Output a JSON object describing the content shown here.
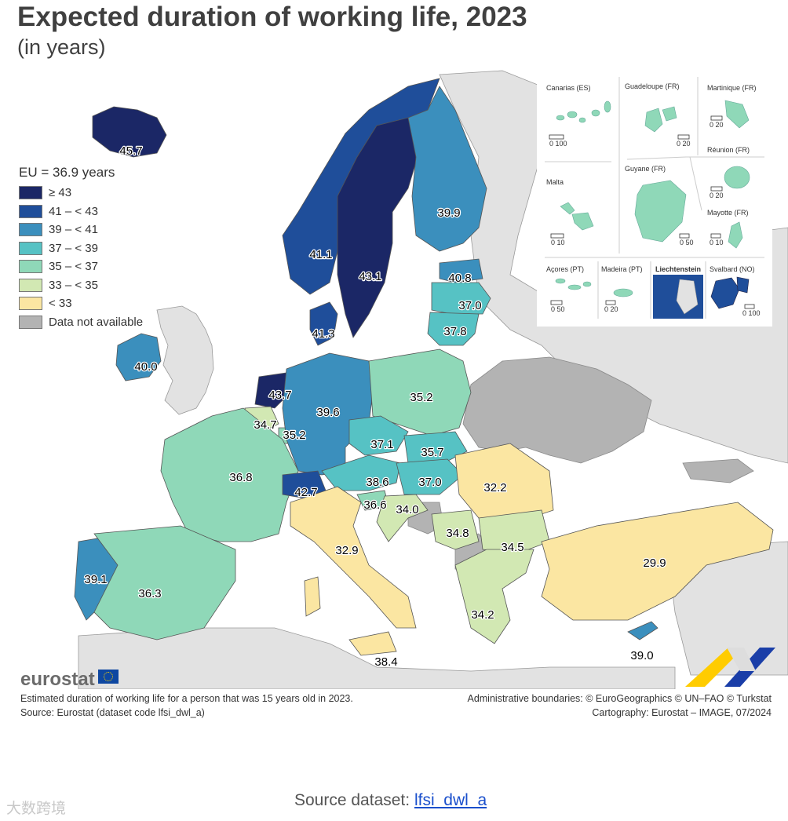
{
  "title": "Expected duration of working life, 2023",
  "subtitle": "(in years)",
  "legend": {
    "title": "EU = 36.9 years",
    "items": [
      {
        "label": "≥ 43",
        "color": "#1b2766"
      },
      {
        "label": "41 – < 43",
        "color": "#1f4e9a"
      },
      {
        "label": "39 – < 41",
        "color": "#3b8fbd"
      },
      {
        "label": "37 – < 39",
        "color": "#56c2c4"
      },
      {
        "label": "35 – < 37",
        "color": "#8fd8b8"
      },
      {
        "label": "33 – < 35",
        "color": "#d2e8b3"
      },
      {
        "label": "< 33",
        "color": "#fbe6a2"
      },
      {
        "label": "Data not available",
        "color": "#b3b3b3"
      }
    ]
  },
  "map_values": {
    "iceland": "45.7",
    "norway": "41.1",
    "sweden": "43.1",
    "finland": "39.9",
    "estonia": "40.8",
    "latvia": "37.0",
    "lithuania": "37.8",
    "denmark": "41.3",
    "ireland": "40.0",
    "netherlands": "43.7",
    "belgium": "34.7",
    "luxembourg": "35.2",
    "germany": "39.6",
    "poland": "35.2",
    "czechia": "37.1",
    "slovakia": "35.7",
    "france": "36.8",
    "switzerland": "42.7",
    "austria": "38.6",
    "hungary": "37.0",
    "slovenia": "36.6",
    "croatia": "34.0",
    "romania": "32.2",
    "serbia": "34.8",
    "bulgaria": "34.5",
    "italy": "32.9",
    "portugal": "39.1",
    "spain": "36.3",
    "greece": "34.2",
    "turkey": "29.9",
    "cyprus": "39.0",
    "malta": "38.4"
  },
  "inset": {
    "canarias": "Canarias (ES)",
    "guadeloupe": "Guadeloupe (FR)",
    "martinique": "Martinique (FR)",
    "reunion": "Réunion (FR)",
    "malta": "Malta",
    "guyane": "Guyane (FR)",
    "mayotte": "Mayotte (FR)",
    "acores": "Açores (PT)",
    "madeira": "Madeira (PT)",
    "liechtenstein": "Liechtenstein",
    "svalbard": "Svalbard (NO)",
    "scales": {
      "canarias": "0   100",
      "guadeloupe": "0   20",
      "martinique": "0   20",
      "reunion": "0   20",
      "malta": "0   10",
      "guyane": "0  50",
      "mayotte": "0  10",
      "acores": "0   50",
      "madeira": "0  20",
      "svalbard": "0  100"
    }
  },
  "logo": "eurostat",
  "footer": {
    "note": "Estimated duration of working life for a person that was 15 years old in 2023.",
    "source": "Source: Eurostat (dataset code lfsi_dwl_a)",
    "admin": "Administrative boundaries: © EuroGeographics © UN–FAO © Turkstat",
    "cartography": "Cartography: Eurostat – IMAGE, 07/2024"
  },
  "source_line": {
    "prefix": "Source dataset:",
    "link": "lfsi_dwl_a"
  },
  "watermark": "大数跨境",
  "colors": {
    "sea": "#ffffff",
    "non_eu_land": "#e2e2e2",
    "no_data": "#b3b3b3"
  }
}
